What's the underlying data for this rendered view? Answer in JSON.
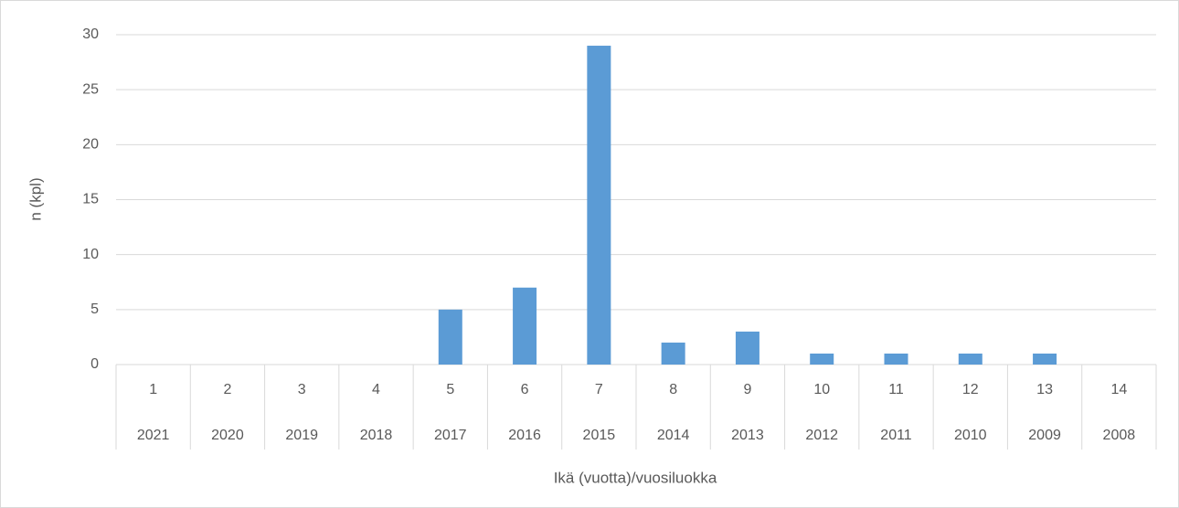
{
  "chart_data": {
    "type": "bar",
    "categories": [
      "1",
      "2",
      "3",
      "4",
      "5",
      "6",
      "7",
      "8",
      "9",
      "10",
      "11",
      "12",
      "13",
      "14"
    ],
    "subcategories": [
      "2021",
      "2020",
      "2019",
      "2018",
      "2017",
      "2016",
      "2015",
      "2014",
      "2013",
      "2012",
      "2011",
      "2010",
      "2009",
      "2008"
    ],
    "values": [
      0,
      0,
      0,
      0,
      5,
      7,
      29,
      2,
      3,
      1,
      1,
      1,
      1,
      0
    ],
    "color": "#5b9bd5",
    "ylim": [
      0,
      30
    ],
    "yticks": [
      0,
      5,
      10,
      15,
      20,
      25,
      30
    ],
    "grid": true,
    "ylabel": "n (kpl)",
    "xlabel": "Ikä (vuotta)/vuosiluokka"
  }
}
